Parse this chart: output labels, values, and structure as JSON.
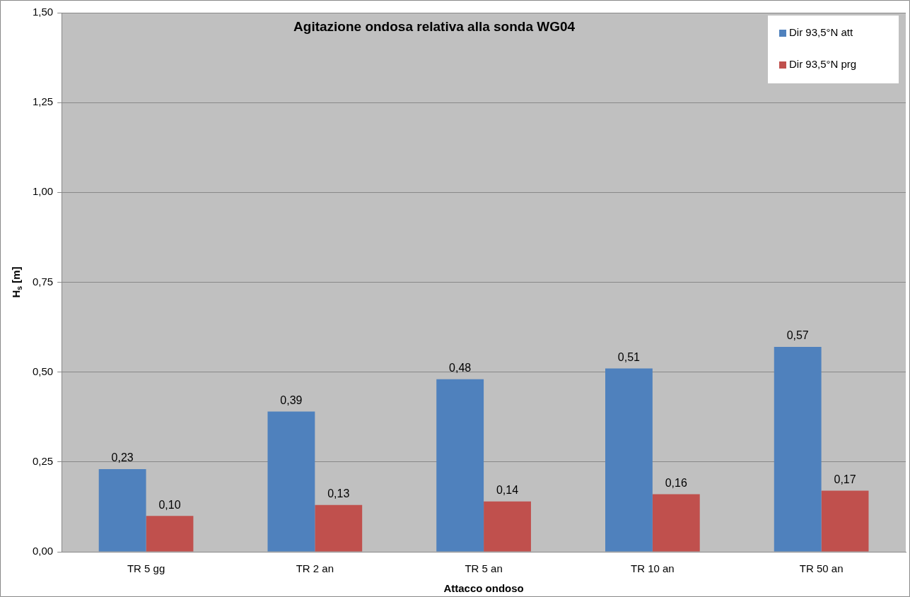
{
  "chart_data": {
    "type": "bar",
    "title": "Agitazione ondosa relativa alla sonda WG04",
    "xlabel": "Attacco ondoso",
    "ylabel": "H$_{s}$ [m]",
    "categories": [
      "TR 5 gg",
      "TR 2 an",
      "TR 5 an",
      "TR 10 an",
      "TR 50 an"
    ],
    "series": [
      {
        "name": "Dir 93,5°N att",
        "color": "#4f81bd",
        "values": [
          0.23,
          0.39,
          0.48,
          0.51,
          0.57
        ],
        "value_labels": [
          "0,23",
          "0,39",
          "0,48",
          "0,51",
          "0,57"
        ]
      },
      {
        "name": "Dir 93,5°N prg",
        "color": "#c0504d",
        "values": [
          0.1,
          0.13,
          0.14,
          0.16,
          0.17
        ],
        "value_labels": [
          "0,10",
          "0,13",
          "0,14",
          "0,16",
          "0,17"
        ]
      }
    ],
    "ylim": [
      0,
      1.5
    ],
    "yticks": [
      {
        "value": 0,
        "label": "0,00"
      },
      {
        "value": 0.25,
        "label": "0,25"
      },
      {
        "value": 0.5,
        "label": "0,50"
      },
      {
        "value": 0.75,
        "label": "0,75"
      },
      {
        "value": 1,
        "label": "1,00"
      },
      {
        "value": 1.25,
        "label": "1,25"
      },
      {
        "value": 1.5,
        "label": "1,50"
      }
    ],
    "grid": "y",
    "legend": "top right"
  }
}
